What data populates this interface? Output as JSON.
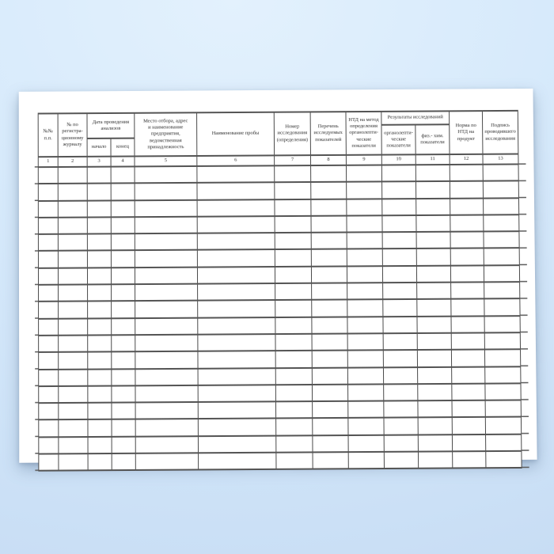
{
  "colors": {
    "background_blue": "#d7eafb",
    "sheet_white": "#ffffff",
    "table_line": "#4a4a4a",
    "text": "#2d2d2d"
  },
  "document": {
    "table": {
      "headers": {
        "col1": "№№\nп.п.",
        "col2": "№ по\nрегистра-\nционному\nжурналу",
        "group_dates": "Дата проведения\nанализов",
        "col3": "начало",
        "col4": "конец",
        "col5": "Место отбора, адрес\nи наименование\nпредприятия,\nведомственная\nпринадлежность",
        "col6": "Наименование пробы",
        "col7": "Номер\nисследования\n(определения)",
        "col8": "Перечень\nисследуемых\nпоказателей",
        "col9": "НТД на метод\nопределения\nорганолепти-\nческие\nпоказатели",
        "group_results": "Результаты исследований",
        "col10": "органолепти-\nческие\nпоказатели",
        "col11": "физ.- хим.\nпоказатели",
        "col12": "Норма по\nНТД на\nпродукт",
        "col13": "Подпись\nпроводившего\nисследования"
      },
      "column_numbers": [
        "1",
        "2",
        "3",
        "4",
        "5",
        "6",
        "7",
        "8",
        "9",
        "10",
        "11",
        "12",
        "13"
      ],
      "empty_row_count": 18
    }
  }
}
